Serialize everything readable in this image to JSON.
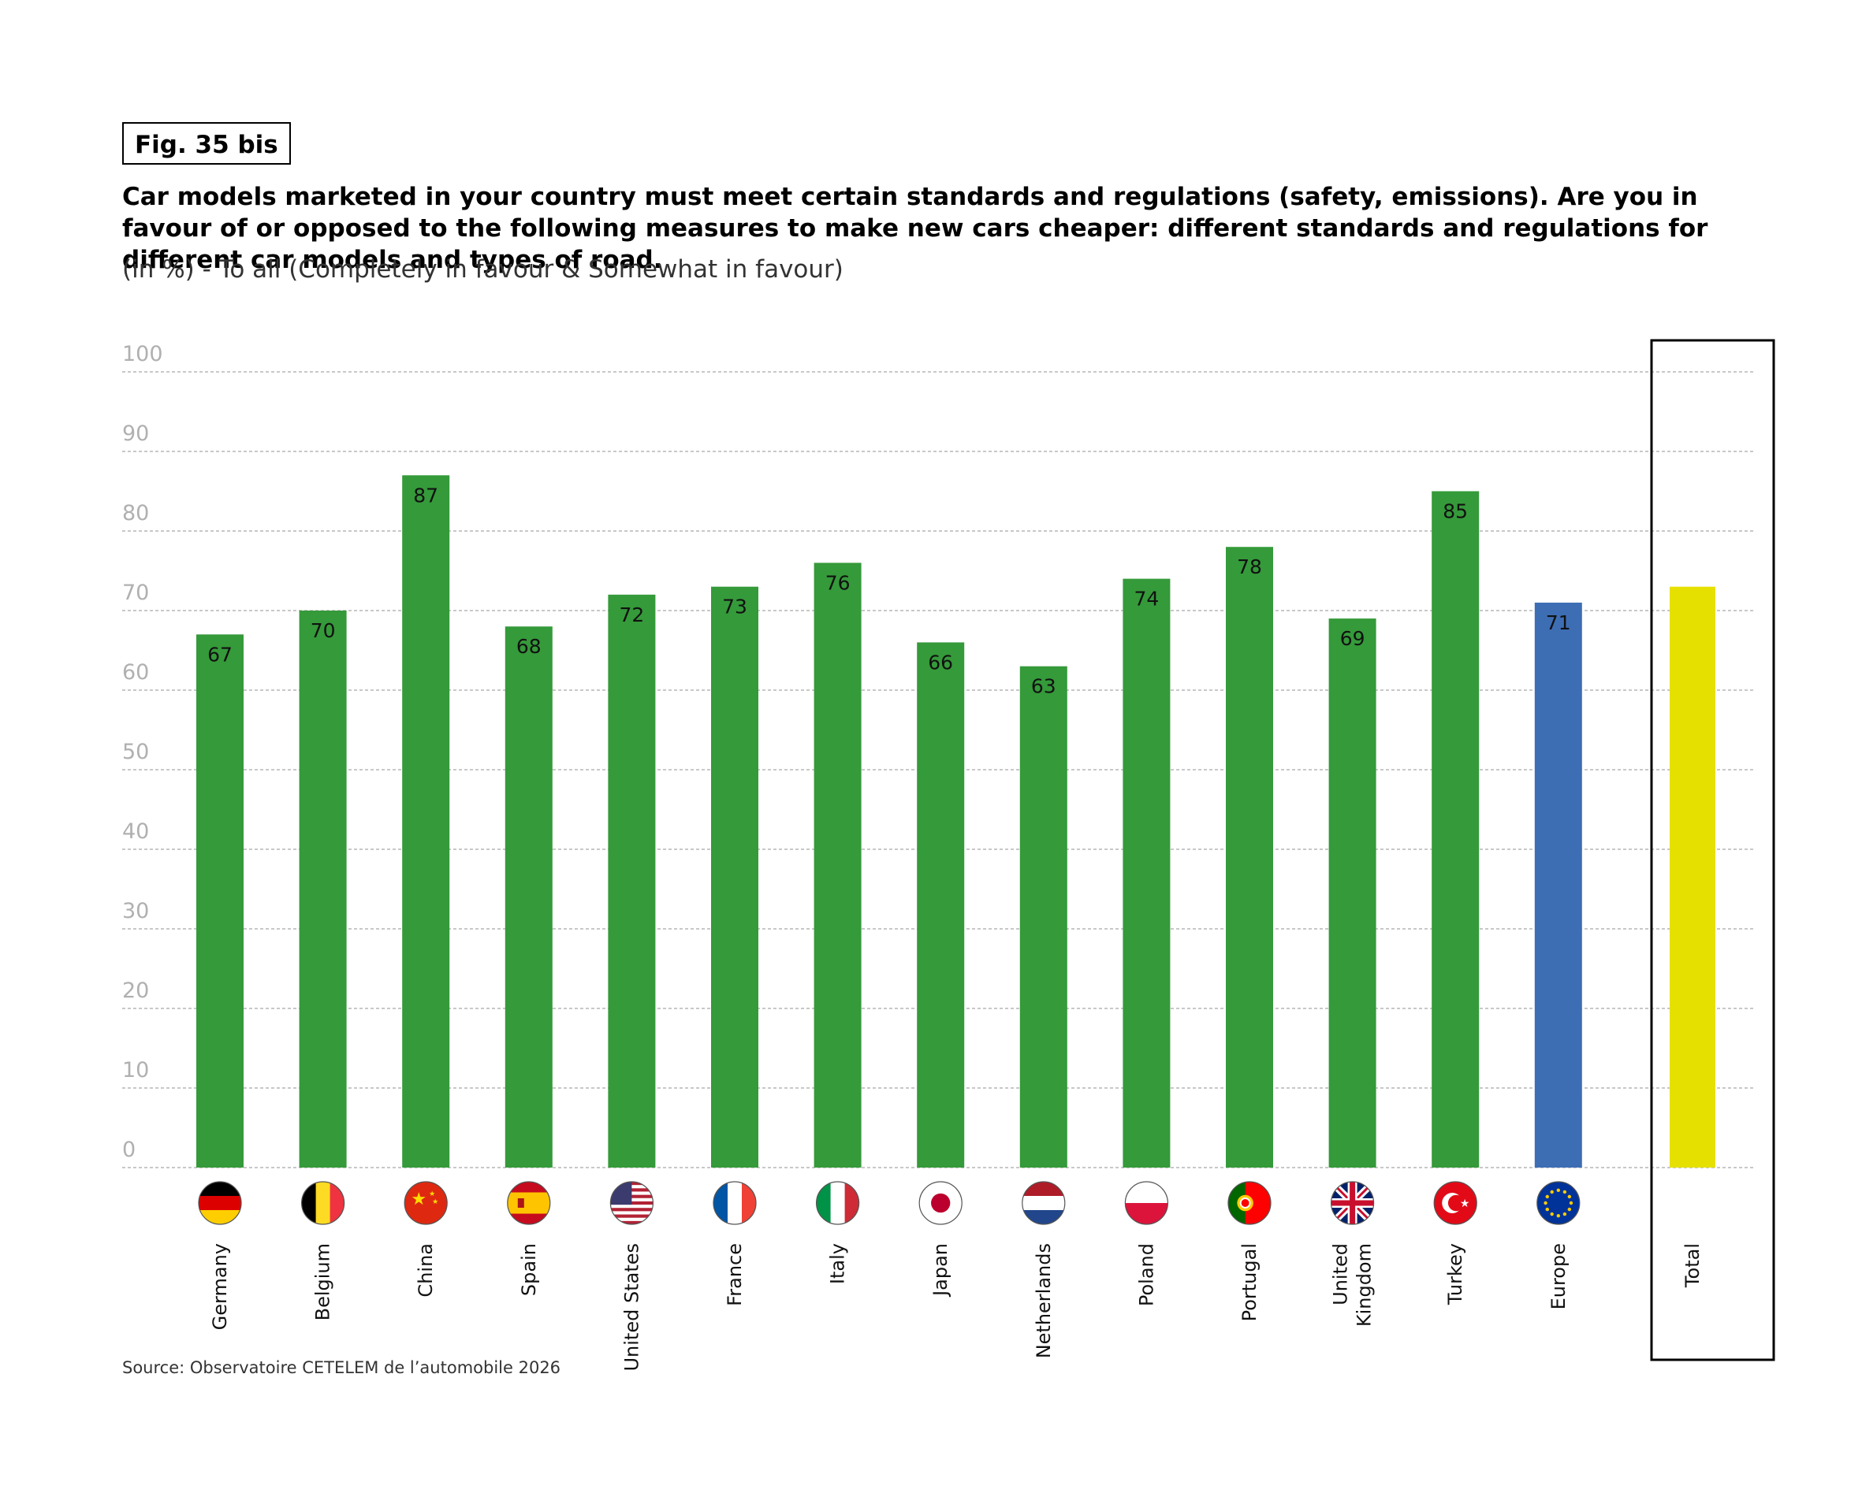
{
  "figure_label": "Fig. 35 bis",
  "title": "Car models marketed in your country must meet certain standards and regulations (safety, emissions). Are you in favour of or opposed to the following measures to make new cars cheaper: different standards and regulations for different car models and types of road.",
  "subtitle": "(in %) - To all (Completely in favour & Somewhat in favour)",
  "source": "Source: Observatoire CETELEM de l’automobile 2026",
  "colors": {
    "country_bar": "#359a3a",
    "europe_bar": "#3d6eb4",
    "total_bar": "#e6e000",
    "gridline": "#b5b5b5",
    "tick_text": "#b0b0b0"
  },
  "chart_data": {
    "type": "bar",
    "title": "Car models marketed in your country must meet certain standards and regulations (safety, emissions). Are you in favour of or opposed to the following measures to make new cars cheaper: different standards and regulations for different car models and types of road.",
    "ylabel": "(in %)",
    "xlabel": "",
    "ylim": [
      0,
      100
    ],
    "yticks": [
      0,
      10,
      20,
      30,
      40,
      50,
      60,
      70,
      80,
      90,
      100
    ],
    "grid": true,
    "categories": [
      "Germany",
      "Belgium",
      "China",
      "Spain",
      "United States",
      "France",
      "Italy",
      "Japan",
      "Netherlands",
      "Poland",
      "Portugal",
      "United Kingdom",
      "Turkey",
      "Europe",
      "Total"
    ],
    "category_lines": [
      [
        "Germany"
      ],
      [
        "Belgium"
      ],
      [
        "China"
      ],
      [
        "Spain"
      ],
      [
        "United States"
      ],
      [
        "France"
      ],
      [
        "Italy"
      ],
      [
        "Japan"
      ],
      [
        "Netherlands"
      ],
      [
        "Poland"
      ],
      [
        "Portugal"
      ],
      [
        "United",
        "Kingdom"
      ],
      [
        "Turkey"
      ],
      [
        "Europe"
      ],
      [
        "Total"
      ]
    ],
    "values": [
      67,
      70,
      87,
      68,
      72,
      73,
      76,
      66,
      63,
      74,
      78,
      69,
      85,
      71,
      73
    ],
    "value_labels": [
      "67",
      "70",
      "87",
      "68",
      "72",
      "73",
      "76",
      "66",
      "63",
      "74",
      "78",
      "69",
      "85",
      "71",
      ""
    ],
    "bar_kind": [
      "country",
      "country",
      "country",
      "country",
      "country",
      "country",
      "country",
      "country",
      "country",
      "country",
      "country",
      "country",
      "country",
      "europe",
      "total"
    ],
    "flags": [
      "germany-flag",
      "belgium-flag",
      "china-flag",
      "spain-flag",
      "united-states-flag",
      "france-flag",
      "italy-flag",
      "japan-flag",
      "netherlands-flag",
      "poland-flag",
      "portugal-flag",
      "united-kingdom-flag",
      "turkey-flag",
      "europe-flag",
      ""
    ],
    "highlight_box": "Total"
  }
}
